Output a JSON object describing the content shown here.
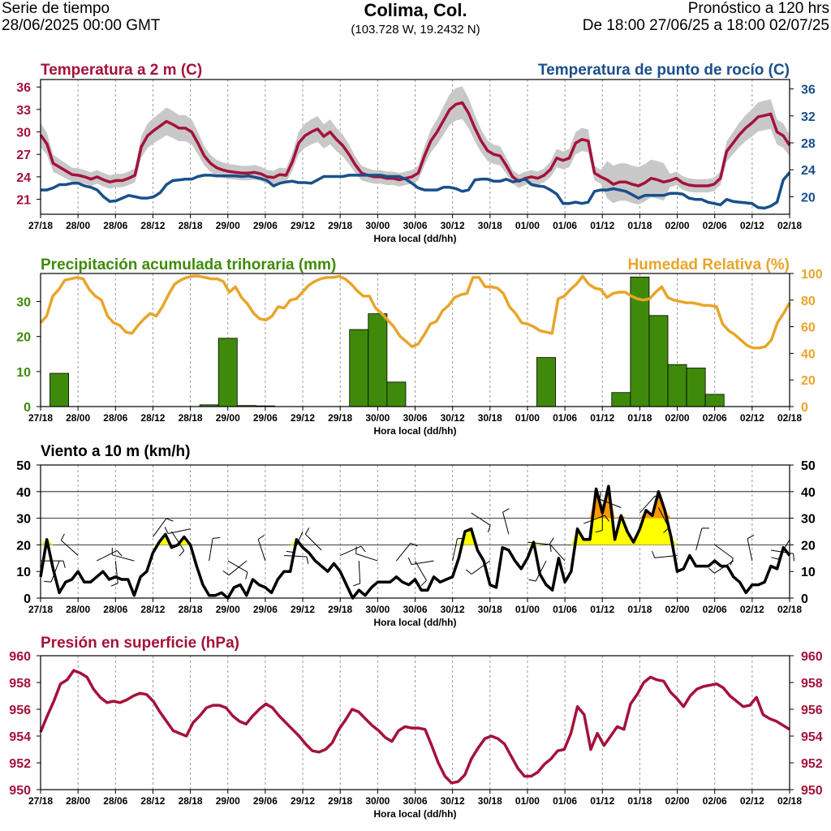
{
  "header": {
    "left_line1": "Serie de tiempo",
    "left_line2": "28/06/2025 00:00 GMT",
    "title": "Colima, Col.",
    "coords": "(103.728 W, 19.2432 N)",
    "right_line1": "Pronóstico a 120 hrs",
    "right_line2": "De 18:00 27/06/25 a 18:00 02/07/25"
  },
  "colors": {
    "temperature": "#a4123b",
    "dewpoint": "#1a4f8c",
    "precip": "#3f8a0a",
    "humidity": "#e8a52a",
    "wind": "#000000",
    "wind_fill_yellow": "#ffff00",
    "wind_fill_orange": "#ff9900",
    "pressure": "#a4123b",
    "spread": "#c8c8c8"
  },
  "x_ticks": [
    "27/18",
    "28/00",
    "28/06",
    "28/12",
    "28/18",
    "29/00",
    "29/06",
    "29/12",
    "29/18",
    "30/00",
    "30/06",
    "30/12",
    "30/18",
    "01/00",
    "01/06",
    "01/12",
    "01/18",
    "02/00",
    "02/06",
    "02/12",
    "02/18"
  ],
  "x_label": "Hora local (dd/hh)",
  "chart_data": [
    {
      "type": "line",
      "title": "Temperatura a 2 m (C)",
      "title_right": "Temperatura de punto de rocío (C)",
      "xlabel": "Hora local (dd/hh)",
      "x_range_hours": [
        0,
        120
      ],
      "ylim_left": [
        19,
        37
      ],
      "yticks_left": [
        21,
        24,
        27,
        30,
        33,
        36
      ],
      "ylim_right": [
        17.4,
        37.4
      ],
      "yticks_right": [
        20,
        24,
        28,
        32,
        36
      ],
      "series": [
        {
          "name": "Temperatura a 2 m",
          "axis": "left",
          "values": [
            29.6,
            28.4,
            25.8,
            25.3,
            24.8,
            24.3,
            24.2,
            24.0,
            23.7,
            24.0,
            23.6,
            23.3,
            23.5,
            23.5,
            23.8,
            24.2,
            28.0,
            29.5,
            30.2,
            30.8,
            31.4,
            31.0,
            30.5,
            30.5,
            30.0,
            28.5,
            26.8,
            25.8,
            25.2,
            24.9,
            24.7,
            24.6,
            24.5,
            24.5,
            24.6,
            24.4,
            24.0,
            23.9,
            24.3,
            24.2,
            26.0,
            28.5,
            29.5,
            30.0,
            30.4,
            29.4,
            30.0,
            29.0,
            28.2,
            27.0,
            25.6,
            24.5,
            24.2,
            24.0,
            24.0,
            23.8,
            23.8,
            23.6,
            23.8,
            24.0,
            24.5,
            26.8,
            28.8,
            30.0,
            31.5,
            33.0,
            33.7,
            33.9,
            32.5,
            30.5,
            28.8,
            27.5,
            27.0,
            26.8,
            25.5,
            24.0,
            23.4,
            23.8,
            24.0,
            23.8,
            24.2,
            25.0,
            26.5,
            26.2,
            26.5,
            28.5,
            29.0,
            28.8,
            24.5,
            24.0,
            23.6,
            23.0,
            23.3,
            23.3,
            23.0,
            22.8,
            23.2,
            23.8,
            23.6,
            23.3,
            23.5,
            23.8,
            23.2,
            22.9,
            22.8,
            22.8,
            22.8,
            23.0,
            23.8,
            27.4,
            28.5,
            29.6,
            30.5,
            31.2,
            32.0,
            32.2,
            32.4,
            30.0,
            29.5,
            28.2
          ]
        },
        {
          "name": "Temperatura de punto de rocío",
          "axis": "right",
          "values": [
            21.0,
            21.0,
            21.3,
            21.8,
            21.8,
            22.0,
            22.0,
            21.6,
            21.4,
            21.0,
            20.0,
            19.3,
            19.4,
            19.8,
            20.2,
            20.0,
            19.8,
            19.8,
            20.0,
            20.6,
            21.8,
            22.4,
            22.5,
            22.6,
            22.6,
            23.0,
            23.2,
            23.2,
            23.1,
            23.1,
            23.1,
            23.1,
            23.0,
            23.1,
            22.9,
            22.7,
            22.4,
            21.6,
            22.0,
            22.2,
            22.3,
            22.1,
            22.1,
            22.0,
            22.5,
            23.0,
            23.0,
            23.0,
            23.0,
            23.2,
            23.2,
            23.2,
            23.2,
            23.2,
            23.2,
            23.0,
            23.0,
            23.0,
            22.6,
            22.0,
            21.3,
            21.0,
            21.0,
            21.0,
            21.4,
            21.4,
            21.2,
            20.8,
            21.0,
            22.5,
            22.6,
            22.6,
            22.3,
            22.3,
            22.6,
            22.2,
            22.4,
            22.6,
            21.8,
            21.6,
            21.5,
            21.0,
            20.4,
            19.0,
            19.0,
            19.2,
            19.0,
            19.2,
            20.8,
            21.0,
            21.0,
            21.2,
            21.0,
            20.8,
            20.3,
            19.8,
            20.2,
            20.2,
            20.2,
            20.2,
            20.5,
            20.5,
            20.4,
            19.8,
            19.6,
            19.6,
            19.2,
            19.0,
            18.8,
            19.6,
            19.3,
            19.2,
            19.1,
            19.0,
            18.4,
            18.3,
            18.6,
            19.2,
            22.5,
            23.6
          ]
        }
      ]
    },
    {
      "type": "bar",
      "title": "Precipitación acumulada trihoraria (mm)",
      "title_right": "Humedad Relativa (%)",
      "xlabel": "Hora local (dd/hh)",
      "x_range_hours": [
        0,
        120
      ],
      "ylim_left": [
        0,
        38
      ],
      "yticks_left": [
        0,
        10,
        20,
        30
      ],
      "ylim_right": [
        0,
        100
      ],
      "yticks_right": [
        0,
        20,
        40,
        60,
        80,
        100
      ],
      "bars": [
        {
          "x": 3,
          "value": 9.5
        },
        {
          "x": 27,
          "value": 0.5
        },
        {
          "x": 30,
          "value": 19.5
        },
        {
          "x": 33,
          "value": 0.3
        },
        {
          "x": 36,
          "value": 0.2
        },
        {
          "x": 51,
          "value": 22.0
        },
        {
          "x": 54,
          "value": 26.5
        },
        {
          "x": 57,
          "value": 7.0
        },
        {
          "x": 81,
          "value": 14.0
        },
        {
          "x": 93,
          "value": 4.0
        },
        {
          "x": 96,
          "value": 37.0
        },
        {
          "x": 99,
          "value": 26.0
        },
        {
          "x": 102,
          "value": 12.0
        },
        {
          "x": 105,
          "value": 11.0
        },
        {
          "x": 108,
          "value": 3.5
        }
      ],
      "series": [
        {
          "name": "Humedad Relativa",
          "axis": "right",
          "values": [
            63,
            68,
            83,
            88,
            95,
            96,
            97,
            96,
            88,
            83,
            80,
            68,
            63,
            61,
            56,
            55,
            61,
            66,
            70,
            68,
            75,
            84,
            92,
            95,
            97,
            98,
            98,
            97,
            96,
            96,
            94,
            86,
            90,
            82,
            77,
            70,
            66,
            65,
            68,
            75,
            74,
            80,
            81,
            86,
            91,
            94,
            96,
            97,
            97,
            98,
            96,
            92,
            87,
            83,
            83,
            74,
            70,
            65,
            60,
            53,
            49,
            45,
            47,
            54,
            62,
            64,
            72,
            76,
            82,
            84,
            85,
            97,
            97,
            90,
            90,
            89,
            85,
            75,
            70,
            63,
            62,
            60,
            57,
            56,
            55,
            81,
            83,
            88,
            92,
            98,
            92,
            89,
            88,
            82,
            85,
            86,
            86,
            83,
            81,
            80,
            81,
            86,
            90,
            82,
            80,
            79,
            78,
            78,
            77,
            76,
            76,
            75,
            62,
            57,
            54,
            50,
            46,
            44,
            44,
            45,
            50,
            63,
            70,
            78
          ]
        }
      ]
    },
    {
      "type": "line",
      "title": "Viento a 10 m (km/h)",
      "xlabel": "Hora local (dd/hh)",
      "x_range_hours": [
        0,
        120
      ],
      "ylim": [
        0,
        50
      ],
      "yticks": [
        0,
        10,
        20,
        30,
        40,
        50
      ],
      "reference_lines": [
        20,
        30,
        40
      ],
      "series": [
        {
          "name": "Viento a 10 m",
          "values": [
            8,
            22,
            11,
            2,
            6,
            7,
            10,
            6,
            6,
            8,
            10,
            7,
            8,
            7,
            7,
            1,
            8,
            10,
            17,
            21,
            24,
            19,
            20,
            23,
            20,
            12,
            5,
            1,
            1,
            2,
            0,
            4,
            5,
            1,
            7,
            5,
            4,
            2,
            7,
            10,
            10,
            22,
            19,
            17,
            14,
            12,
            10,
            13,
            10,
            5,
            0,
            3,
            1,
            4,
            6,
            6,
            6,
            8,
            6,
            5,
            7,
            3,
            3,
            8,
            6,
            7,
            8,
            15,
            25,
            26,
            18,
            14,
            5,
            4,
            19,
            18,
            14,
            11,
            15,
            21,
            9,
            5,
            3,
            15,
            6,
            10,
            26,
            22,
            22,
            41,
            32,
            42,
            22,
            31,
            25,
            21,
            26,
            33,
            31,
            40,
            33,
            23,
            10,
            11,
            16,
            12,
            12,
            12,
            14,
            12,
            12,
            8,
            6,
            2,
            5,
            5,
            6,
            12,
            11,
            19,
            16
          ]
        }
      ]
    },
    {
      "type": "line",
      "title": "Presión en superficie (hPa)",
      "xlabel": "Hora local (dd/hh)",
      "x_range_hours": [
        0,
        120
      ],
      "ylim": [
        950,
        960
      ],
      "yticks": [
        950,
        952,
        954,
        956,
        958,
        960
      ],
      "series": [
        {
          "name": "Presión en superficie",
          "values": [
            954.3,
            955.5,
            956.6,
            957.9,
            958.2,
            958.9,
            958.7,
            958.4,
            957.5,
            956.9,
            956.5,
            956.6,
            956.5,
            956.7,
            957.0,
            957.2,
            957.1,
            956.6,
            955.8,
            955.1,
            954.4,
            954.2,
            954.0,
            955.0,
            955.5,
            956.1,
            956.3,
            956.3,
            956.1,
            955.5,
            955.1,
            954.9,
            955.5,
            956.0,
            956.4,
            956.1,
            955.5,
            955.0,
            954.5,
            954.0,
            953.4,
            952.9,
            952.8,
            953.0,
            953.5,
            954.5,
            955.2,
            956.0,
            955.8,
            955.3,
            954.8,
            954.4,
            953.9,
            953.6,
            954.4,
            954.7,
            954.6,
            954.6,
            954.5,
            953.3,
            952.0,
            951.0,
            950.5,
            950.6,
            951.1,
            952.3,
            953.1,
            953.8,
            954.0,
            953.8,
            953.4,
            952.5,
            951.6,
            951.0,
            951.0,
            951.3,
            951.9,
            952.3,
            952.9,
            953.0,
            954.2,
            956.2,
            955.6,
            953.0,
            954.2,
            953.3,
            954.0,
            954.7,
            954.5,
            956.4,
            957.1,
            958.0,
            958.4,
            958.2,
            958.1,
            957.3,
            956.8,
            956.2,
            957.0,
            957.5,
            957.7,
            957.8,
            957.9,
            957.6,
            957.0,
            956.6,
            956.2,
            956.3,
            956.9,
            955.6,
            955.3,
            955.1,
            954.8,
            954.5
          ]
        }
      ]
    }
  ]
}
